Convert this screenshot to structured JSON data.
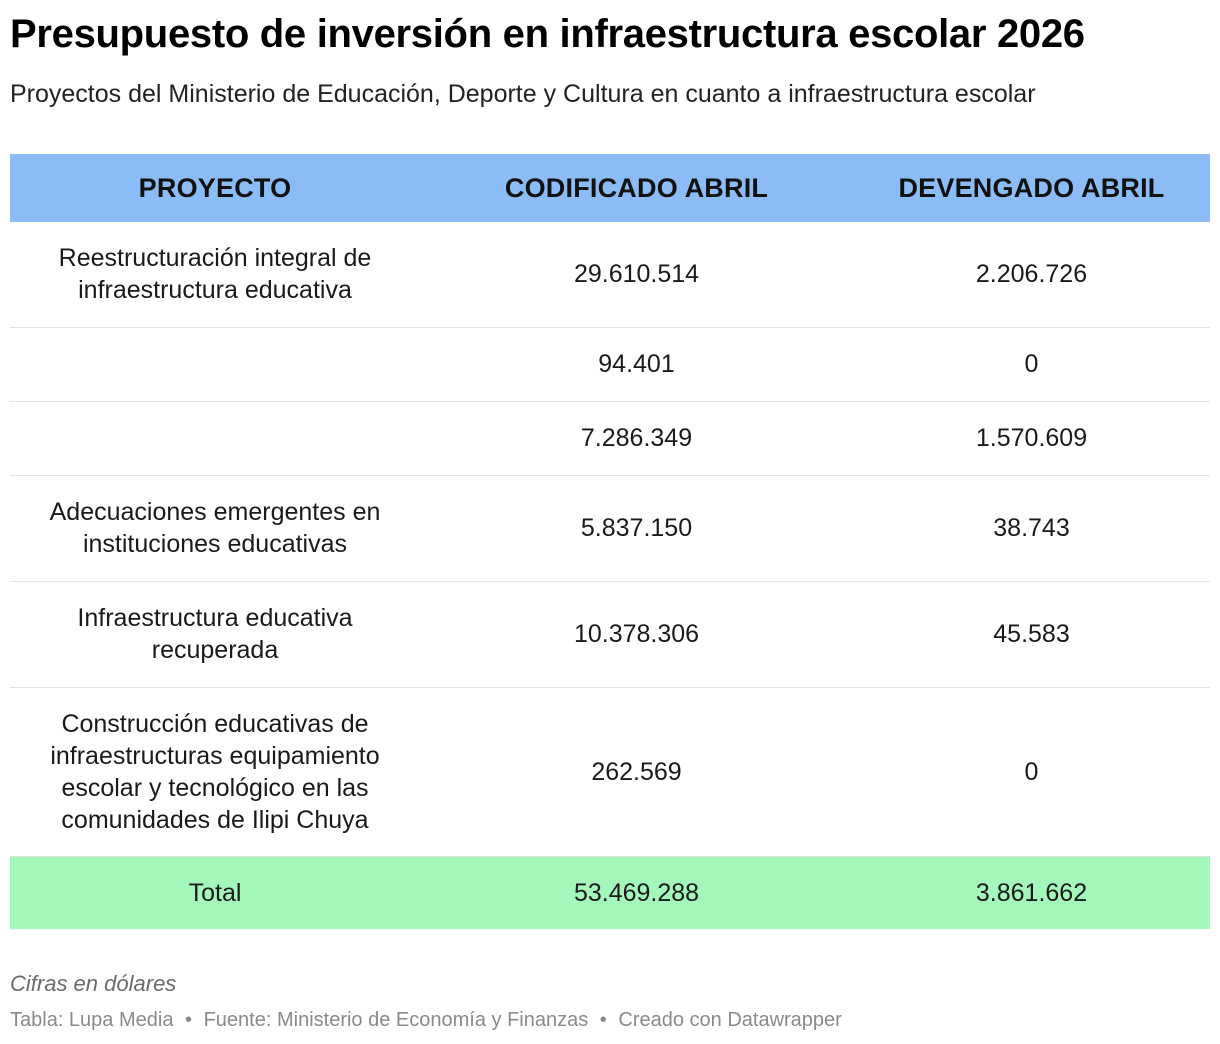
{
  "header": {
    "title": "Presupuesto de inversión en infraestructura escolar 2026",
    "subtitle": "Proyectos del Ministerio de Educación, Deporte y Cultura en cuanto a infraestructura escolar"
  },
  "chart_data": {
    "type": "table",
    "columns": [
      "PROYECTO",
      "CODIFICADO ABRIL",
      "DEVENGADO ABRIL"
    ],
    "rows": [
      {
        "proyecto": "Reestructuración integral de infraestructura educativa",
        "codificado": "29.610.514",
        "devengado": "2.206.726"
      },
      {
        "proyecto": "",
        "codificado": "94.401",
        "devengado": "0"
      },
      {
        "proyecto": "",
        "codificado": "7.286.349",
        "devengado": "1.570.609"
      },
      {
        "proyecto": "Adecuaciones emergentes en instituciones educativas",
        "codificado": "5.837.150",
        "devengado": "38.743"
      },
      {
        "proyecto": "Infraestructura educativa recuperada",
        "codificado": "10.378.306",
        "devengado": "45.583"
      },
      {
        "proyecto": "Construcción educativas de infraestructuras equipamiento escolar y tecnológico en las comunidades de Ilipi Chuya",
        "codificado": "262.569",
        "devengado": "0"
      }
    ],
    "total": {
      "label": "Total",
      "codificado": "53.469.288",
      "devengado": "3.861.662"
    }
  },
  "colors": {
    "header_bg": "#8bbcf6",
    "total_bg": "#a3f7bb"
  },
  "footer": {
    "note": "Cifras en dólares",
    "credit_table": "Tabla: Lupa Media",
    "credit_source": "Fuente: Ministerio de Economía y Finanzas",
    "credit_tool": "Creado con Datawrapper",
    "separator": "•"
  }
}
